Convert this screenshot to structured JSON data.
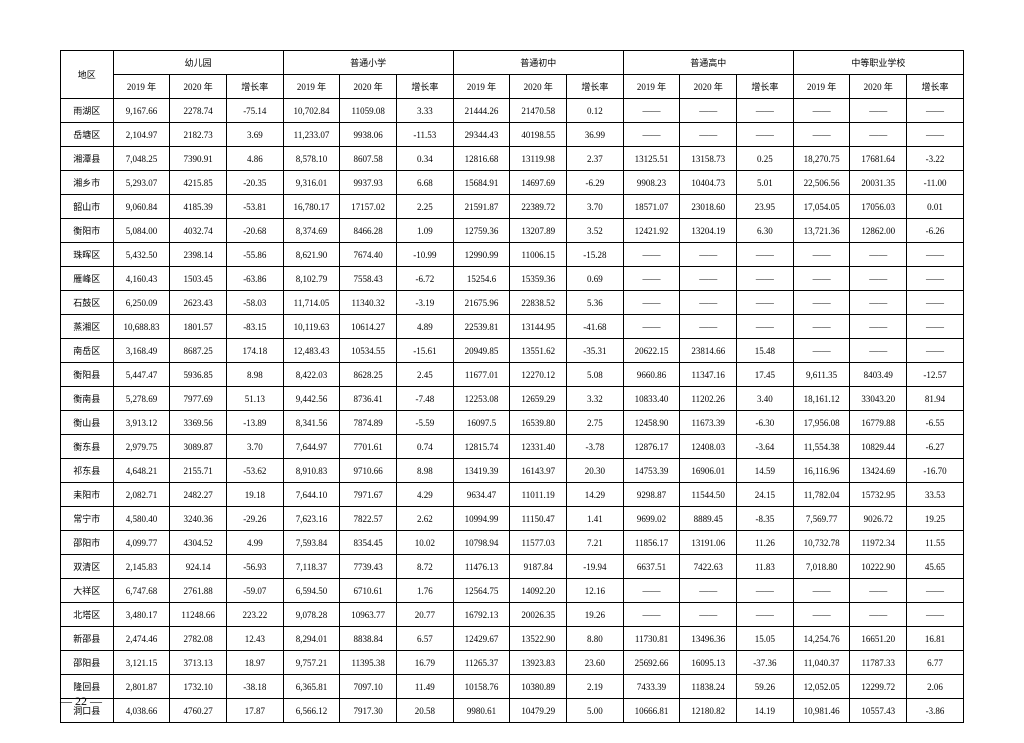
{
  "header": {
    "region": "地区",
    "groups": [
      "幼儿园",
      "普通小学",
      "普通初中",
      "普通高中",
      "中等职业学校"
    ],
    "subcols": [
      "2019 年",
      "2020 年",
      "增长率"
    ]
  },
  "rows": [
    {
      "region": "雨湖区",
      "cells": [
        "9,167.66",
        "2278.74",
        "-75.14",
        "10,702.84",
        "11059.08",
        "3.33",
        "21444.26",
        "21470.58",
        "0.12",
        "——",
        "——",
        "——",
        "——",
        "——",
        "——"
      ]
    },
    {
      "region": "岳塘区",
      "cells": [
        "2,104.97",
        "2182.73",
        "3.69",
        "11,233.07",
        "9938.06",
        "-11.53",
        "29344.43",
        "40198.55",
        "36.99",
        "——",
        "——",
        "——",
        "——",
        "——",
        "——"
      ]
    },
    {
      "region": "湘潭县",
      "cells": [
        "7,048.25",
        "7390.91",
        "4.86",
        "8,578.10",
        "8607.58",
        "0.34",
        "12816.68",
        "13119.98",
        "2.37",
        "13125.51",
        "13158.73",
        "0.25",
        "18,270.75",
        "17681.64",
        "-3.22"
      ]
    },
    {
      "region": "湘乡市",
      "cells": [
        "5,293.07",
        "4215.85",
        "-20.35",
        "9,316.01",
        "9937.93",
        "6.68",
        "15684.91",
        "14697.69",
        "-6.29",
        "9908.23",
        "10404.73",
        "5.01",
        "22,506.56",
        "20031.35",
        "-11.00"
      ]
    },
    {
      "region": "韶山市",
      "cells": [
        "9,060.84",
        "4185.39",
        "-53.81",
        "16,780.17",
        "17157.02",
        "2.25",
        "21591.87",
        "22389.72",
        "3.70",
        "18571.07",
        "23018.60",
        "23.95",
        "17,054.05",
        "17056.03",
        "0.01"
      ]
    },
    {
      "region": "衡阳市",
      "cells": [
        "5,084.00",
        "4032.74",
        "-20.68",
        "8,374.69",
        "8466.28",
        "1.09",
        "12759.36",
        "13207.89",
        "3.52",
        "12421.92",
        "13204.19",
        "6.30",
        "13,721.36",
        "12862.00",
        "-6.26"
      ]
    },
    {
      "region": "珠晖区",
      "cells": [
        "5,432.50",
        "2398.14",
        "-55.86",
        "8,621.90",
        "7674.40",
        "-10.99",
        "12990.99",
        "11006.15",
        "-15.28",
        "——",
        "——",
        "——",
        "——",
        "——",
        "——"
      ]
    },
    {
      "region": "雁峰区",
      "cells": [
        "4,160.43",
        "1503.45",
        "-63.86",
        "8,102.79",
        "7558.43",
        "-6.72",
        "15254.6",
        "15359.36",
        "0.69",
        "——",
        "——",
        "——",
        "——",
        "——",
        "——"
      ]
    },
    {
      "region": "石鼓区",
      "cells": [
        "6,250.09",
        "2623.43",
        "-58.03",
        "11,714.05",
        "11340.32",
        "-3.19",
        "21675.96",
        "22838.52",
        "5.36",
        "——",
        "——",
        "——",
        "——",
        "——",
        "——"
      ]
    },
    {
      "region": "蒸湘区",
      "cells": [
        "10,688.83",
        "1801.57",
        "-83.15",
        "10,119.63",
        "10614.27",
        "4.89",
        "22539.81",
        "13144.95",
        "-41.68",
        "——",
        "——",
        "——",
        "——",
        "——",
        "——"
      ]
    },
    {
      "region": "南岳区",
      "cells": [
        "3,168.49",
        "8687.25",
        "174.18",
        "12,483.43",
        "10534.55",
        "-15.61",
        "20949.85",
        "13551.62",
        "-35.31",
        "20622.15",
        "23814.66",
        "15.48",
        "——",
        "——",
        "——"
      ]
    },
    {
      "region": "衡阳县",
      "cells": [
        "5,447.47",
        "5936.85",
        "8.98",
        "8,422.03",
        "8628.25",
        "2.45",
        "11677.01",
        "12270.12",
        "5.08",
        "9660.86",
        "11347.16",
        "17.45",
        "9,611.35",
        "8403.49",
        "-12.57"
      ]
    },
    {
      "region": "衡南县",
      "cells": [
        "5,278.69",
        "7977.69",
        "51.13",
        "9,442.56",
        "8736.41",
        "-7.48",
        "12253.08",
        "12659.29",
        "3.32",
        "10833.40",
        "11202.26",
        "3.40",
        "18,161.12",
        "33043.20",
        "81.94"
      ]
    },
    {
      "region": "衡山县",
      "cells": [
        "3,913.12",
        "3369.56",
        "-13.89",
        "8,341.56",
        "7874.89",
        "-5.59",
        "16097.5",
        "16539.80",
        "2.75",
        "12458.90",
        "11673.39",
        "-6.30",
        "17,956.08",
        "16779.88",
        "-6.55"
      ]
    },
    {
      "region": "衡东县",
      "cells": [
        "2,979.75",
        "3089.87",
        "3.70",
        "7,644.97",
        "7701.61",
        "0.74",
        "12815.74",
        "12331.40",
        "-3.78",
        "12876.17",
        "12408.03",
        "-3.64",
        "11,554.38",
        "10829.44",
        "-6.27"
      ]
    },
    {
      "region": "祁东县",
      "cells": [
        "4,648.21",
        "2155.71",
        "-53.62",
        "8,910.83",
        "9710.66",
        "8.98",
        "13419.39",
        "16143.97",
        "20.30",
        "14753.39",
        "16906.01",
        "14.59",
        "16,116.96",
        "13424.69",
        "-16.70"
      ]
    },
    {
      "region": "耒阳市",
      "cells": [
        "2,082.71",
        "2482.27",
        "19.18",
        "7,644.10",
        "7971.67",
        "4.29",
        "9634.47",
        "11011.19",
        "14.29",
        "9298.87",
        "11544.50",
        "24.15",
        "11,782.04",
        "15732.95",
        "33.53"
      ]
    },
    {
      "region": "常宁市",
      "cells": [
        "4,580.40",
        "3240.36",
        "-29.26",
        "7,623.16",
        "7822.57",
        "2.62",
        "10994.99",
        "11150.47",
        "1.41",
        "9699.02",
        "8889.45",
        "-8.35",
        "7,569.77",
        "9026.72",
        "19.25"
      ]
    },
    {
      "region": "邵阳市",
      "cells": [
        "4,099.77",
        "4304.52",
        "4.99",
        "7,593.84",
        "8354.45",
        "10.02",
        "10798.94",
        "11577.03",
        "7.21",
        "11856.17",
        "13191.06",
        "11.26",
        "10,732.78",
        "11972.34",
        "11.55"
      ]
    },
    {
      "region": "双清区",
      "cells": [
        "2,145.83",
        "924.14",
        "-56.93",
        "7,118.37",
        "7739.43",
        "8.72",
        "11476.13",
        "9187.84",
        "-19.94",
        "6637.51",
        "7422.63",
        "11.83",
        "7,018.80",
        "10222.90",
        "45.65"
      ]
    },
    {
      "region": "大祥区",
      "cells": [
        "6,747.68",
        "2761.88",
        "-59.07",
        "6,594.50",
        "6710.61",
        "1.76",
        "12564.75",
        "14092.20",
        "12.16",
        "——",
        "——",
        "——",
        "——",
        "——",
        "——"
      ]
    },
    {
      "region": "北塔区",
      "cells": [
        "3,480.17",
        "11248.66",
        "223.22",
        "9,078.28",
        "10963.77",
        "20.77",
        "16792.13",
        "20026.35",
        "19.26",
        "——",
        "——",
        "——",
        "——",
        "——",
        "——"
      ]
    },
    {
      "region": "新邵县",
      "cells": [
        "2,474.46",
        "2782.08",
        "12.43",
        "8,294.01",
        "8838.84",
        "6.57",
        "12429.67",
        "13522.90",
        "8.80",
        "11730.81",
        "13496.36",
        "15.05",
        "14,254.76",
        "16651.20",
        "16.81"
      ]
    },
    {
      "region": "邵阳县",
      "cells": [
        "3,121.15",
        "3713.13",
        "18.97",
        "9,757.21",
        "11395.38",
        "16.79",
        "11265.37",
        "13923.83",
        "23.60",
        "25692.66",
        "16095.13",
        "-37.36",
        "11,040.37",
        "11787.33",
        "6.77"
      ]
    },
    {
      "region": "隆回县",
      "cells": [
        "2,801.87",
        "1732.10",
        "-38.18",
        "6,365.81",
        "7097.10",
        "11.49",
        "10158.76",
        "10380.89",
        "2.19",
        "7433.39",
        "11838.24",
        "59.26",
        "12,052.05",
        "12299.72",
        "2.06"
      ]
    },
    {
      "region": "洞口县",
      "cells": [
        "4,038.66",
        "4760.27",
        "17.87",
        "6,566.12",
        "7917.30",
        "20.58",
        "9980.61",
        "10479.29",
        "5.00",
        "10666.81",
        "12180.82",
        "14.19",
        "10,981.46",
        "10557.43",
        "-3.86"
      ]
    }
  ],
  "pageNumber": "— 22 —"
}
